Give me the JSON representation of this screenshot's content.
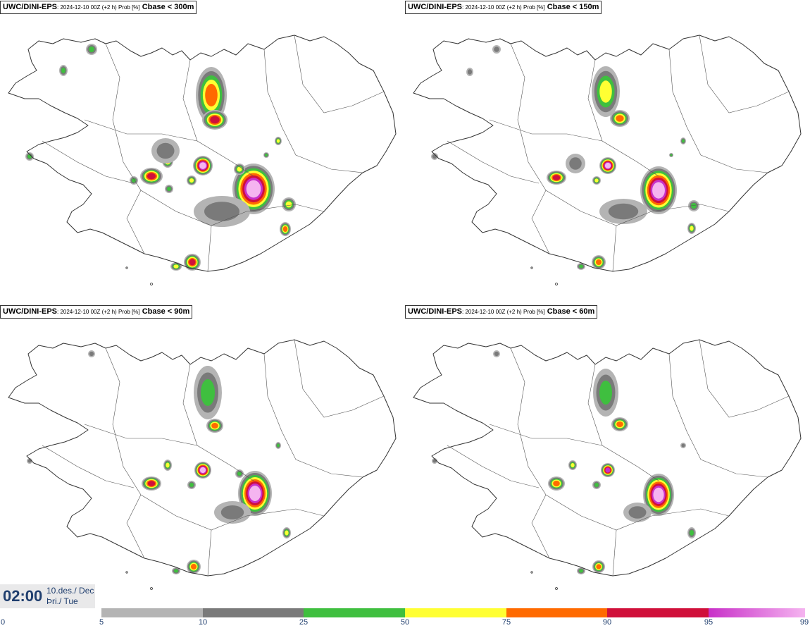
{
  "panels": [
    {
      "source": "UWC/DINI-EPS",
      "meta": ": 2024-12-10 00Z (+2 h) Prob [%]",
      "level": "Cbase < 300m"
    },
    {
      "source": "UWC/DINI-EPS",
      "meta": ": 2024-12-10 00Z (+2 h) Prob [%]",
      "level": "Cbase < 150m"
    },
    {
      "source": "UWC/DINI-EPS",
      "meta": ": 2024-12-10 00Z (+2 h) Prob [%]",
      "level": "Cbase < 90m"
    },
    {
      "source": "UWC/DINI-EPS",
      "meta": ": 2024-12-10 00Z (+2 h) Prob [%]",
      "level": "Cbase < 60m"
    }
  ],
  "time": {
    "clock": "02:00",
    "date_line1": "10.des./ Dec",
    "date_line2": "Þri./ Tue"
  },
  "colorbar": {
    "ticks": [
      "0",
      "5",
      "10",
      "25",
      "50",
      "75",
      "90",
      "95",
      "99"
    ],
    "bands": [
      {
        "from": "0",
        "to": "5",
        "color": "#ffffff"
      },
      {
        "from": "5",
        "to": "10",
        "color": "#b4b4b4"
      },
      {
        "from": "10",
        "to": "25",
        "color": "#7a7a7a"
      },
      {
        "from": "25",
        "to": "50",
        "color": "#3fbf3f"
      },
      {
        "from": "50",
        "to": "75",
        "color": "#ffff33"
      },
      {
        "from": "75",
        "to": "90",
        "color": "#ff6a00"
      },
      {
        "from": "90",
        "to": "95",
        "color": "#d0103a"
      },
      {
        "from": "95",
        "to": "99",
        "color": "#c830c8"
      }
    ]
  },
  "colors": {
    "gray_light": "#b4b4b4",
    "gray_dark": "#7a7a7a",
    "green": "#3fbf3f",
    "yellow": "#ffff33",
    "orange": "#ff6a00",
    "red": "#d0103a",
    "magenta": "#c830c8",
    "pink": "#f5b4f0"
  }
}
